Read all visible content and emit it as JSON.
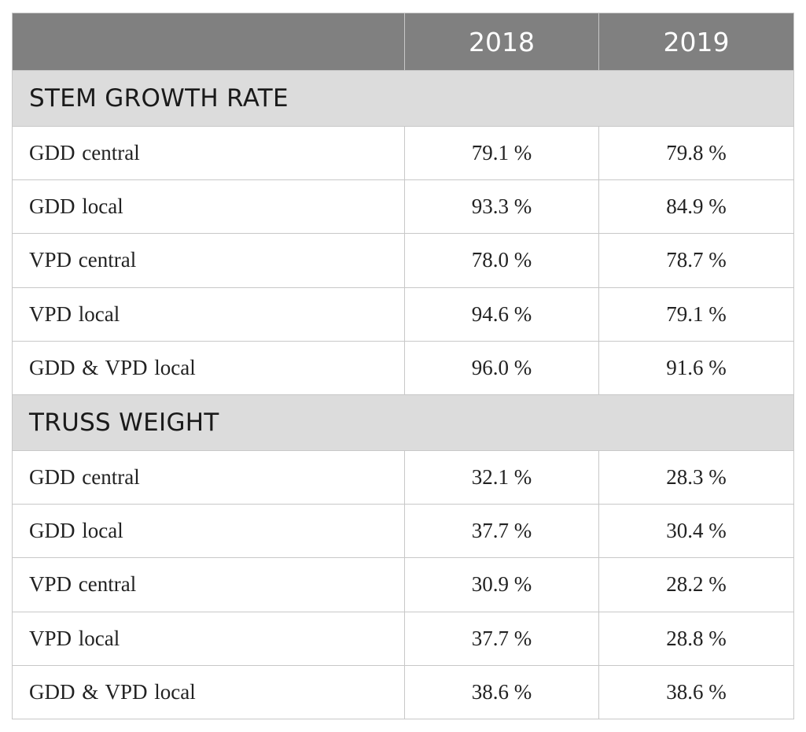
{
  "header": {
    "corner": "",
    "year1": "2018",
    "year2": "2019"
  },
  "sections": [
    {
      "title": "STEM GROWTH RATE",
      "rows": [
        {
          "label": "GDD central",
          "v2018": "79.1 %",
          "v2019": "79.8 %"
        },
        {
          "label": "GDD local",
          "v2018": "93.3 %",
          "v2019": "84.9 %"
        },
        {
          "label": "VPD central",
          "v2018": "78.0 %",
          "v2019": "78.7 %"
        },
        {
          "label": "VPD local",
          "v2018": "94.6 %",
          "v2019": "79.1 %"
        },
        {
          "label": "GDD & VPD local",
          "v2018": "96.0 %",
          "v2019": "91.6 %"
        }
      ]
    },
    {
      "title": "TRUSS WEIGHT",
      "rows": [
        {
          "label": "GDD central",
          "v2018": "32.1 %",
          "v2019": "28.3 %"
        },
        {
          "label": "GDD local",
          "v2018": "37.7 %",
          "v2019": "30.4 %"
        },
        {
          "label": "VPD central",
          "v2018": "30.9 %",
          "v2019": "28.2 %"
        },
        {
          "label": "VPD local",
          "v2018": "37.7 %",
          "v2019": "28.8 %"
        },
        {
          "label": "GDD & VPD local",
          "v2018": "38.6 %",
          "v2019": "38.6 %"
        }
      ]
    }
  ]
}
